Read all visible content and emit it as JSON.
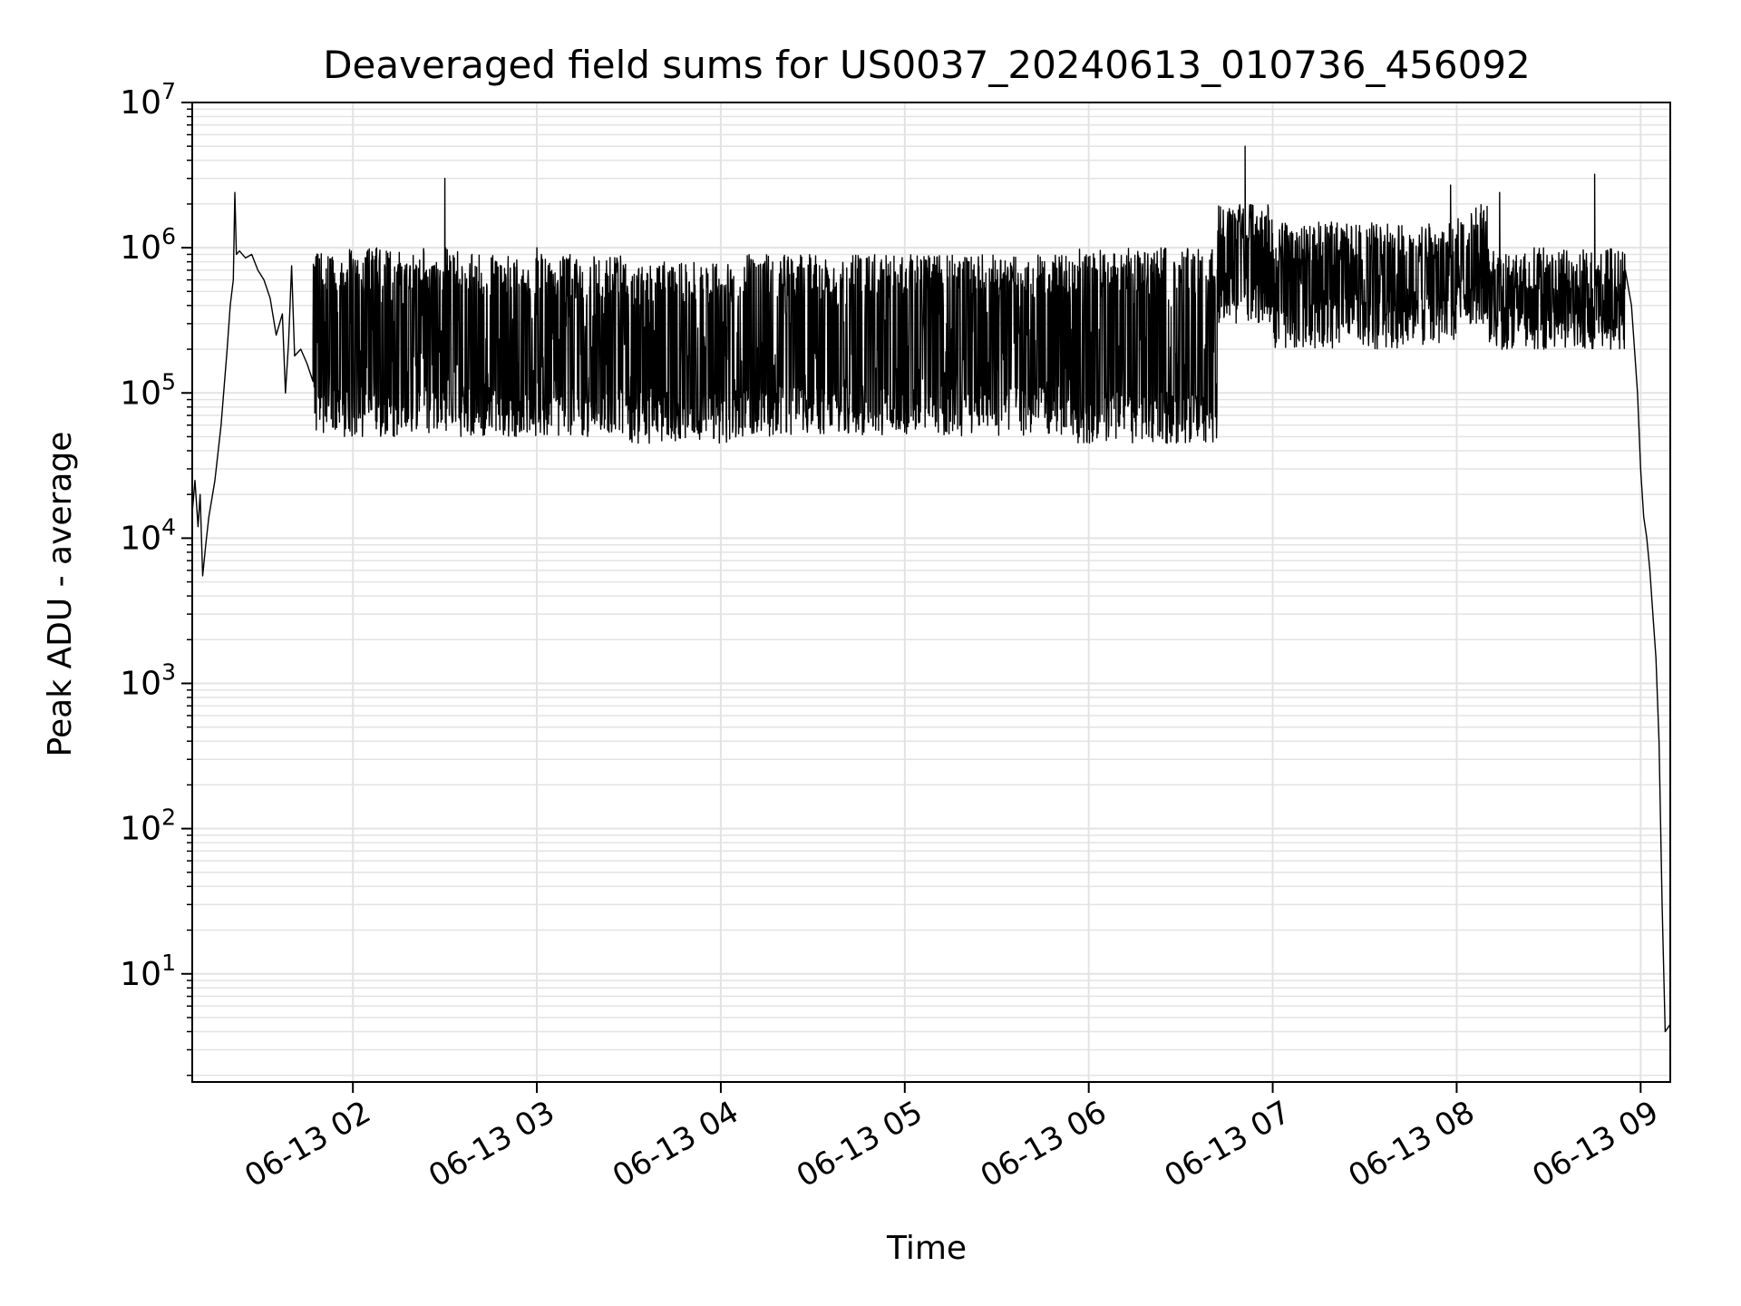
{
  "chart_data": {
    "type": "line",
    "title": "Deaveraged field sums for US0037_20240613_010736_456092",
    "xlabel": "Time",
    "ylabel": "Peak ADU - average",
    "yscale": "log",
    "ylim": [
      1.8,
      10000000
    ],
    "xlim": [
      "2024-06-13 01:07:36",
      "2024-06-13 09:09:40"
    ],
    "grid": "major and minor, light gray",
    "line_color": "#000000",
    "x_ticks": [
      {
        "label": "06-13 02",
        "time": "2024-06-13 02:00"
      },
      {
        "label": "06-13 03",
        "time": "2024-06-13 03:00"
      },
      {
        "label": "06-13 04",
        "time": "2024-06-13 04:00"
      },
      {
        "label": "06-13 05",
        "time": "2024-06-13 05:00"
      },
      {
        "label": "06-13 06",
        "time": "2024-06-13 06:00"
      },
      {
        "label": "06-13 07",
        "time": "2024-06-13 07:00"
      },
      {
        "label": "06-13 08",
        "time": "2024-06-13 08:00"
      },
      {
        "label": "06-13 09",
        "time": "2024-06-13 09:00"
      }
    ],
    "y_ticks": [
      {
        "base": "10",
        "exp": "1",
        "value": 10
      },
      {
        "base": "10",
        "exp": "2",
        "value": 100
      },
      {
        "base": "10",
        "exp": "3",
        "value": 1000
      },
      {
        "base": "10",
        "exp": "4",
        "value": 10000
      },
      {
        "base": "10",
        "exp": "5",
        "value": 100000
      },
      {
        "base": "10",
        "exp": "6",
        "value": 1000000
      },
      {
        "base": "10",
        "exp": "7",
        "value": 10000000
      }
    ],
    "series": [
      {
        "points": [
          [
            "2024-06-13 01:07:36",
            15000
          ],
          [
            "2024-06-13 01:08:30",
            25000
          ],
          [
            "2024-06-13 01:09:30",
            12000
          ],
          [
            "2024-06-13 01:10:10",
            20000
          ],
          [
            "2024-06-13 01:11:00",
            5500
          ],
          [
            "2024-06-13 01:12:00",
            9000
          ],
          [
            "2024-06-13 01:13:00",
            14000
          ],
          [
            "2024-06-13 01:15:00",
            25000
          ],
          [
            "2024-06-13 01:17:00",
            60000
          ],
          [
            "2024-06-13 01:19:00",
            200000
          ],
          [
            "2024-06-13 01:20:00",
            400000
          ],
          [
            "2024-06-13 01:21:00",
            600000
          ],
          [
            "2024-06-13 01:21:30",
            2400000
          ],
          [
            "2024-06-13 01:22:00",
            900000
          ],
          [
            "2024-06-13 01:23:00",
            950000
          ],
          [
            "2024-06-13 01:25:00",
            850000
          ],
          [
            "2024-06-13 01:27:00",
            900000
          ],
          [
            "2024-06-13 01:29:00",
            700000
          ],
          [
            "2024-06-13 01:31:00",
            600000
          ],
          [
            "2024-06-13 01:33:00",
            450000
          ],
          [
            "2024-06-13 01:35:00",
            250000
          ],
          [
            "2024-06-13 01:37:00",
            350000
          ],
          [
            "2024-06-13 01:38:00",
            100000
          ],
          [
            "2024-06-13 01:39:00",
            220000
          ],
          [
            "2024-06-13 01:40:00",
            750000
          ],
          [
            "2024-06-13 01:41:00",
            180000
          ],
          [
            "2024-06-13 01:43:00",
            200000
          ],
          [
            "2024-06-13 01:45:00",
            160000
          ],
          [
            "2024-06-13 01:47:00",
            120000
          ]
        ],
        "band": {
          "from": "2024-06-13 01:47:00",
          "to": "2024-06-13 08:55:00",
          "segments": [
            {
              "from": "2024-06-13 01:47",
              "to": "2024-06-13 02:35",
              "low": 50000,
              "high": 1000000
            },
            {
              "from": "2024-06-13 02:35",
              "to": "2024-06-13 03:30",
              "low": 50000,
              "high": 900000
            },
            {
              "from": "2024-06-13 03:30",
              "to": "2024-06-13 04:07",
              "low": 45000,
              "high": 800000
            },
            {
              "from": "2024-06-13 04:07",
              "to": "2024-06-13 05:55",
              "low": 50000,
              "high": 900000
            },
            {
              "from": "2024-06-13 05:55",
              "to": "2024-06-13 06:42",
              "low": 45000,
              "high": 1000000
            },
            {
              "from": "2024-06-13 06:42",
              "to": "2024-06-13 07:00",
              "low": 300000,
              "high": 2000000
            },
            {
              "from": "2024-06-13 07:00",
              "to": "2024-06-13 08:00",
              "low": 200000,
              "high": 1500000
            },
            {
              "from": "2024-06-13 08:00",
              "to": "2024-06-13 08:10",
              "low": 300000,
              "high": 2000000
            },
            {
              "from": "2024-06-13 08:10",
              "to": "2024-06-13 08:55",
              "low": 200000,
              "high": 1000000
            }
          ]
        },
        "spikes": [
          [
            "2024-06-13 02:30",
            3000000
          ],
          [
            "2024-06-13 03:00",
            1000000
          ],
          [
            "2024-06-13 06:51",
            5000000
          ],
          [
            "2024-06-13 07:58",
            2700000
          ],
          [
            "2024-06-13 08:14",
            2400000
          ],
          [
            "2024-06-13 08:45",
            3200000
          ]
        ],
        "tail": [
          [
            "2024-06-13 08:55:00",
            700000
          ],
          [
            "2024-06-13 08:57:00",
            400000
          ],
          [
            "2024-06-13 08:59:00",
            100000
          ],
          [
            "2024-06-13 09:00:00",
            30000
          ],
          [
            "2024-06-13 09:01:00",
            14000
          ],
          [
            "2024-06-13 09:02:00",
            10000
          ],
          [
            "2024-06-13 09:03:00",
            6000
          ],
          [
            "2024-06-13 09:04:00",
            3000
          ],
          [
            "2024-06-13 09:05:00",
            1500
          ],
          [
            "2024-06-13 09:06:00",
            400
          ],
          [
            "2024-06-13 09:07:00",
            30
          ],
          [
            "2024-06-13 09:08:00",
            4
          ],
          [
            "2024-06-13 09:09:40",
            4.5
          ]
        ]
      }
    ]
  }
}
